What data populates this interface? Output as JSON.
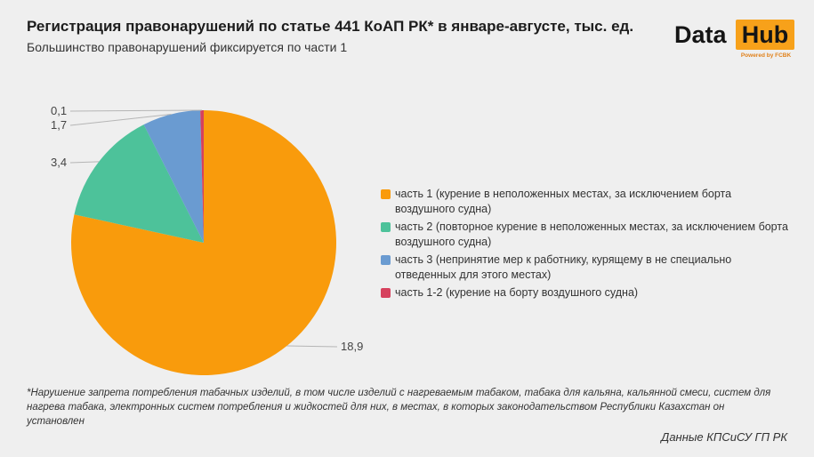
{
  "header": {
    "title": "Регистрация правонарушений по статье 441 КоАП РК* в январе-августе, тыс. ед.",
    "subtitle": "Большинство правонарушений фиксируется по части 1"
  },
  "logo": {
    "word1": "Data",
    "word2": "Hub",
    "powered": "Powered by FCBK",
    "accent": "#f7a11a"
  },
  "chart_data": {
    "type": "pie",
    "slices": [
      {
        "name": "часть 1 (курение в неположенных местах, за исключением борта воздушного судна)",
        "value": 18.9,
        "label": "18,9",
        "color": "#f99b0c"
      },
      {
        "name": "часть 2 (повторное курение в неположенных местах, за исключением борта воздушного судна)",
        "value": 3.4,
        "label": "3,4",
        "color": "#4dc29a"
      },
      {
        "name": "часть 3 (непринятие мер к работнику, курящему в не специально отведенных для этого местах)",
        "value": 1.7,
        "label": "1,7",
        "color": "#6a9bd1"
      },
      {
        "name": "часть 1-2 (курение на борту воздушного судна)",
        "value": 0.1,
        "label": "0,1",
        "color": "#d6415d"
      }
    ],
    "legend_position": "right"
  },
  "footnote": "*Нарушение запрета потребления табачных изделий, в том числе изделий с нагреваемым табаком, табака для кальяна, кальянной смеси, систем для нагрева табака, электронных систем потребления и жидкостей для них, в местах, в которых законодательством Республики Казахстан он установлен",
  "source": "Данные КПСиСУ ГП РК"
}
